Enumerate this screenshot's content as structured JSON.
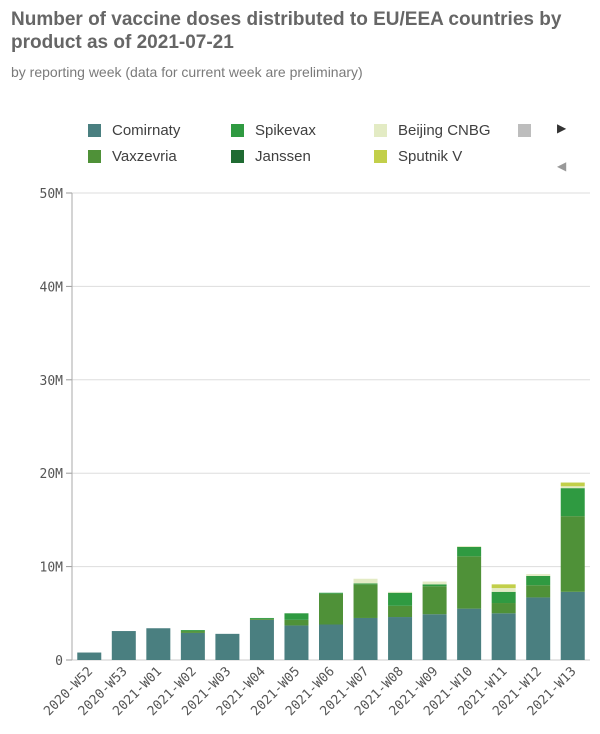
{
  "header": {
    "title": "Number of vaccine doses distributed to EU/EEA countries by product as of 2021-07-21",
    "subtitle": "by reporting week (data for current week are preliminary)"
  },
  "legend": {
    "items": [
      {
        "label": "Comirnaty",
        "color": "#4a7f80"
      },
      {
        "label": "Spikevax",
        "color": "#2f9a41"
      },
      {
        "label": "Beijing CNBG",
        "color": "#e3ebc4"
      },
      {
        "label": "Vaxzevria",
        "color": "#4f9138"
      },
      {
        "label": "Janssen",
        "color": "#1f6b32"
      },
      {
        "label": "Sputnik V",
        "color": "#c2cf4a"
      }
    ],
    "extra_color": "#bdbdbd",
    "next_icon": "▶",
    "prev_icon": "◀"
  },
  "chart_data": {
    "type": "bar",
    "stacked": true,
    "categories": [
      "2020-W52",
      "2020-W53",
      "2021-W01",
      "2021-W02",
      "2021-W03",
      "2021-W04",
      "2021-W05",
      "2021-W06",
      "2021-W07",
      "2021-W08",
      "2021-W09",
      "2021-W10",
      "2021-W11",
      "2021-W12",
      "2021-W13"
    ],
    "series": [
      {
        "name": "Comirnaty",
        "color": "#4a7f80",
        "values": [
          0.8,
          3.1,
          3.4,
          2.9,
          2.8,
          4.3,
          3.7,
          3.8,
          4.5,
          4.6,
          4.9,
          5.5,
          5.0,
          6.7,
          7.3
        ]
      },
      {
        "name": "Vaxzevria",
        "color": "#4f9138",
        "values": [
          0,
          0,
          0,
          0.2,
          0,
          0.1,
          0.6,
          3.3,
          3.6,
          1.2,
          3.0,
          5.6,
          1.1,
          1.3,
          8.1
        ]
      },
      {
        "name": "Spikevax",
        "color": "#2f9a41",
        "values": [
          0,
          0,
          0,
          0.1,
          0,
          0.1,
          0.7,
          0.1,
          0.1,
          1.4,
          0.2,
          1.0,
          1.2,
          1.0,
          3.0
        ]
      },
      {
        "name": "Janssen",
        "color": "#1f6b32",
        "values": [
          0,
          0,
          0,
          0,
          0,
          0,
          0,
          0,
          0,
          0,
          0,
          0,
          0,
          0,
          0
        ]
      },
      {
        "name": "Beijing CNBG",
        "color": "#e3ebc4",
        "values": [
          0,
          0,
          0,
          0,
          0,
          0,
          0,
          0,
          0.5,
          0.1,
          0.3,
          0.1,
          0.4,
          0.2,
          0.2
        ]
      },
      {
        "name": "Sputnik V",
        "color": "#c2cf4a",
        "values": [
          0,
          0,
          0,
          0,
          0,
          0,
          0,
          0,
          0,
          0,
          0,
          0,
          0.4,
          0,
          0.4
        ]
      }
    ],
    "ylim": [
      0,
      50
    ],
    "y_ticks": [
      0,
      10,
      20,
      30,
      40,
      50
    ],
    "y_tick_labels": [
      "0",
      "10M",
      "20M",
      "30M",
      "40M",
      "50M"
    ],
    "grid": true,
    "legend_position": "top"
  }
}
